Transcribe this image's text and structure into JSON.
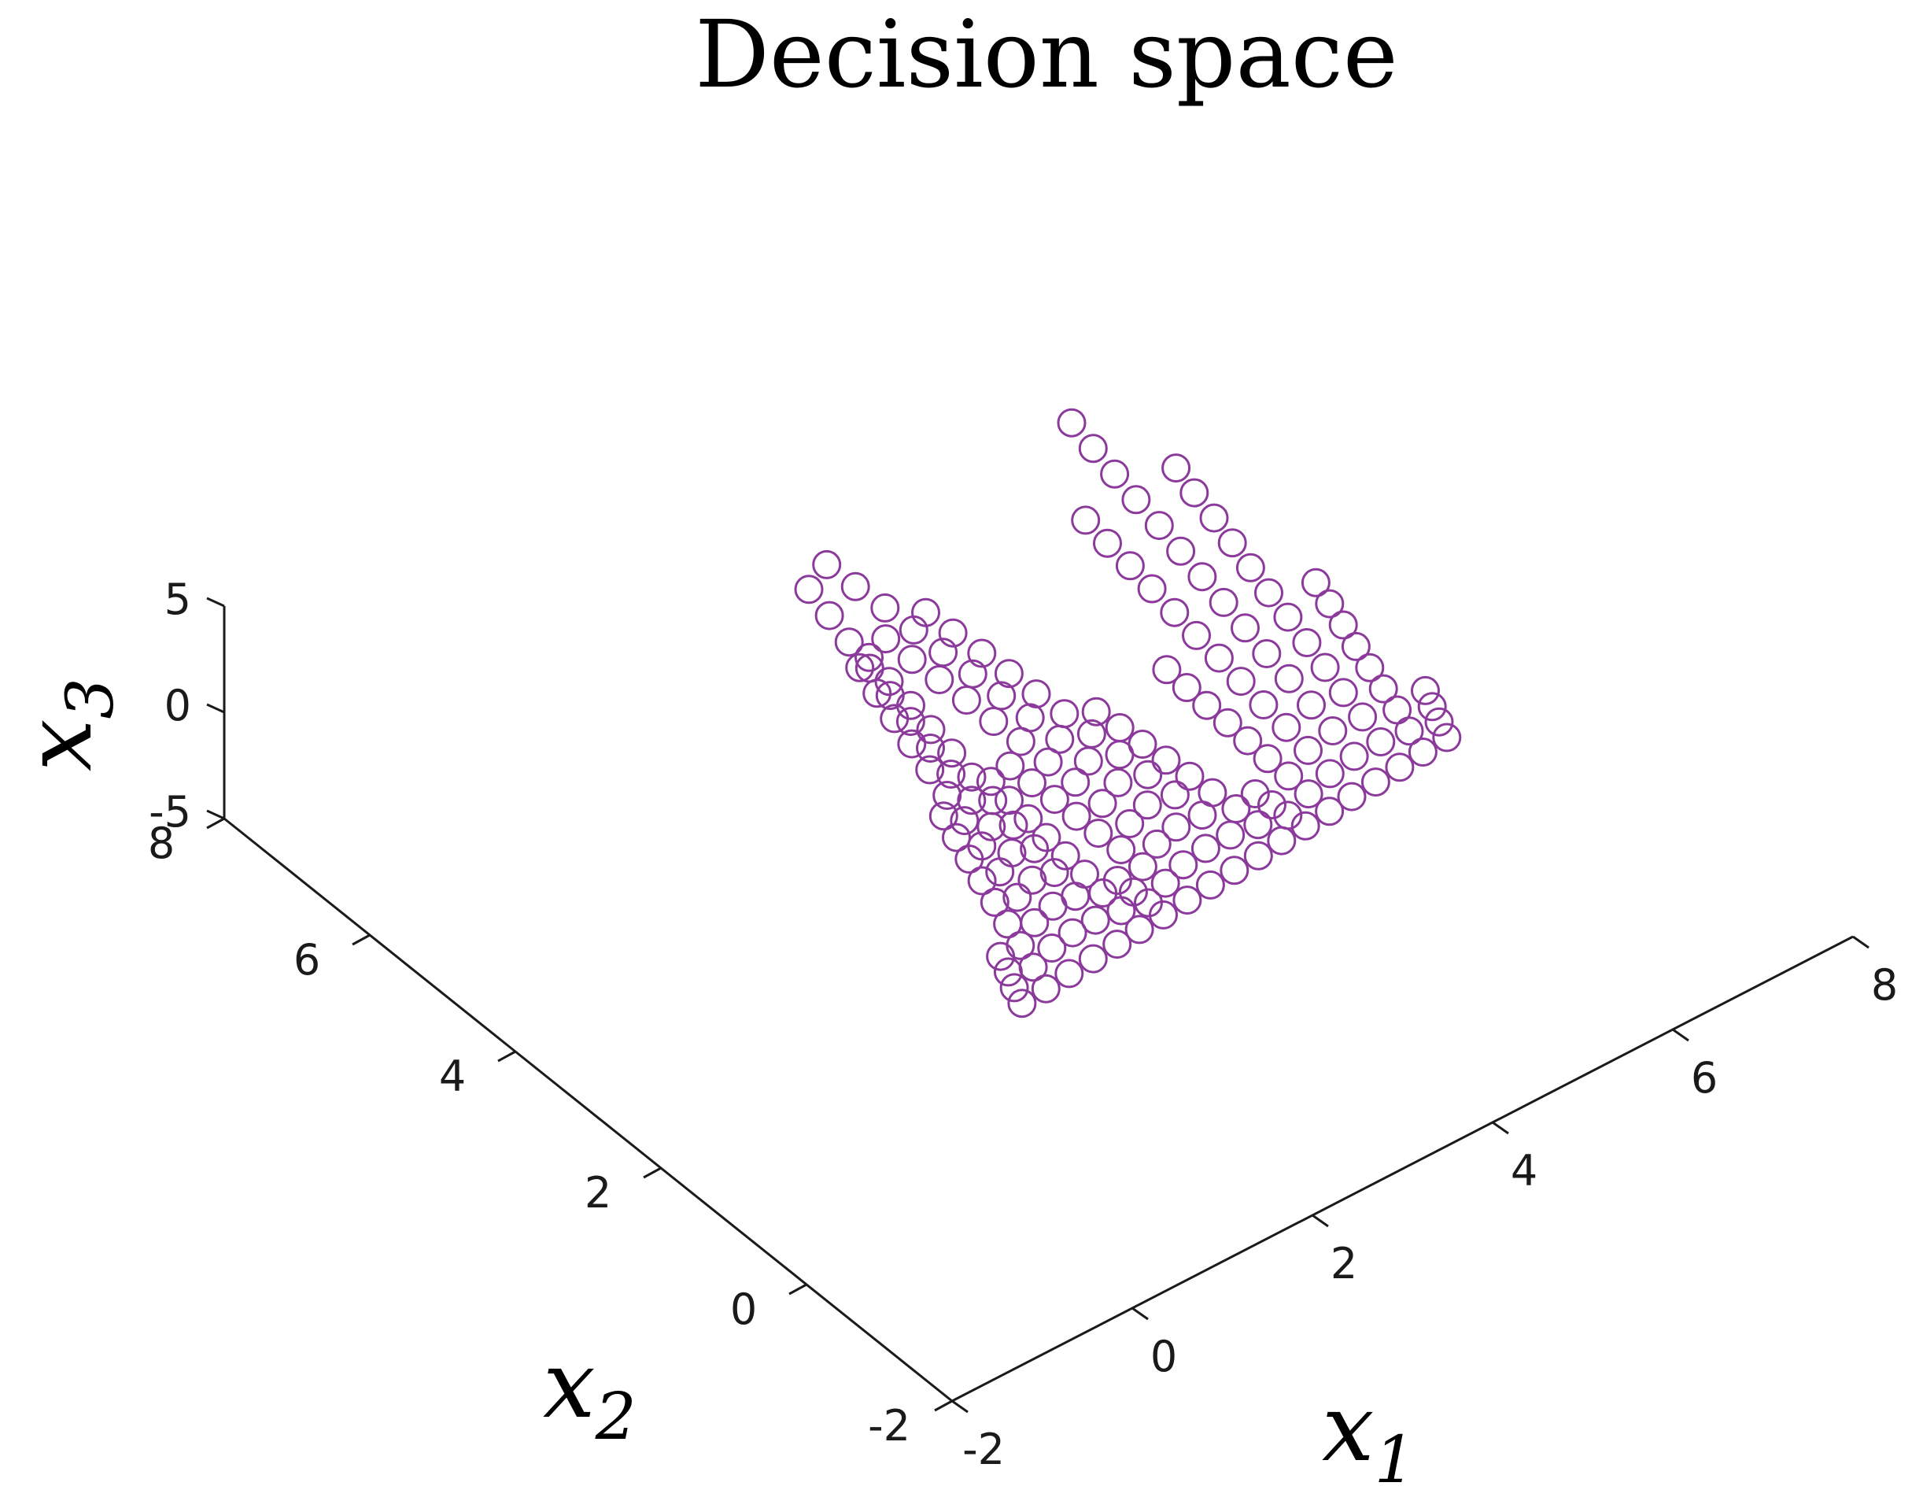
{
  "chart_data": {
    "type": "scatter",
    "subtype": "3d-scatter",
    "title": "Decision space",
    "axes": {
      "x1": {
        "label": "x",
        "subscript": "1",
        "range": [
          -2,
          8
        ],
        "ticks": [
          -2,
          0,
          2,
          4,
          6,
          8
        ]
      },
      "x2": {
        "label": "x",
        "subscript": "2",
        "range": [
          -2,
          8
        ],
        "ticks": [
          -2,
          0,
          2,
          4,
          6,
          8
        ]
      },
      "x3": {
        "label": "x",
        "subscript": "3",
        "range": [
          -5,
          5
        ],
        "ticks": [
          -5,
          0,
          5
        ]
      }
    },
    "grid": false,
    "legend": "none",
    "marker": "open-circle",
    "series_color": "#8B3A9C",
    "series": [
      {
        "description_none": "",
        "generator": "approximate Pareto-set points: fan-shaped surface sampled from data region",
        "points": []
      }
    ]
  }
}
